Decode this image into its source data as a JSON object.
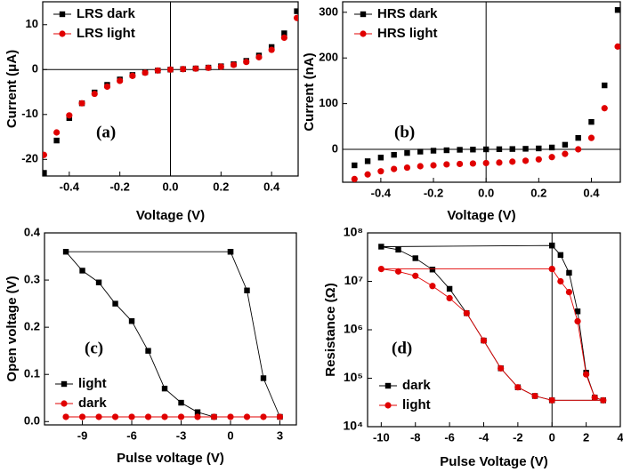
{
  "chart_data": [
    {
      "type": "scatter",
      "annotation": "(a)",
      "x_label": "Voltage (V)",
      "y_label": "Current (μA)",
      "x": [
        -0.5,
        -0.45,
        -0.4,
        -0.35,
        -0.3,
        -0.25,
        -0.2,
        -0.15,
        -0.1,
        -0.05,
        0,
        0.05,
        0.1,
        0.15,
        0.2,
        0.25,
        0.3,
        0.35,
        0.4,
        0.45,
        0.5
      ],
      "series": [
        {
          "name": "LRS dark",
          "color": "#000000",
          "marker": "square",
          "values": [
            -23,
            -15.8,
            -10.8,
            -7.5,
            -5.1,
            -3.4,
            -2.2,
            -1.2,
            -0.6,
            -0.2,
            0,
            0.11,
            0.25,
            0.44,
            0.74,
            1.2,
            1.94,
            3.13,
            5.02,
            8.08,
            13
          ]
        },
        {
          "name": "LRS light",
          "color": "#e00000",
          "marker": "circle",
          "values": [
            -19,
            -14,
            -10.2,
            -7.5,
            -5.4,
            -3.8,
            -2.5,
            -1.4,
            -0.7,
            -0.2,
            0,
            0.1,
            0.22,
            0.39,
            0.65,
            1.06,
            1.7,
            2.75,
            4.4,
            7.1,
            11.5
          ]
        }
      ],
      "xlim": [
        -0.505,
        0.505
      ],
      "xticks": [
        -0.4,
        -0.2,
        {
          "value": 0,
          "label": "0.0"
        },
        0.2,
        0.4
      ],
      "ylim": [
        -23.7,
        15.1
      ],
      "yticks": [
        -20,
        -10,
        0,
        10
      ],
      "zero_lines": true,
      "legend": "upper left"
    },
    {
      "type": "scatter",
      "annotation": "(b)",
      "x_label": "Voltage (V)",
      "y_label": "Current (nA)",
      "x": [
        -0.5,
        -0.45,
        -0.4,
        -0.35,
        -0.3,
        -0.25,
        -0.2,
        -0.15,
        -0.1,
        -0.05,
        0,
        0.05,
        0.1,
        0.15,
        0.2,
        0.25,
        0.3,
        0.35,
        0.4,
        0.45,
        0.5
      ],
      "series": [
        {
          "name": "HRS dark",
          "color": "#000000",
          "marker": "square",
          "values": [
            -35,
            -26,
            -18,
            -12,
            -8,
            -5,
            -3,
            -2,
            -1,
            -0.5,
            0,
            0.3,
            0.7,
            1.2,
            2,
            4,
            10,
            25,
            60,
            140,
            305
          ]
        },
        {
          "name": "HRS light",
          "color": "#e00000",
          "marker": "circle",
          "values": [
            -65,
            -55,
            -48,
            -43,
            -40,
            -37,
            -35,
            -33,
            -32,
            -31,
            -30,
            -29,
            -27,
            -25,
            -22,
            -17,
            -10,
            0,
            25,
            90,
            225
          ]
        }
      ],
      "xlim": [
        -0.545,
        0.51
      ],
      "xticks": [
        -0.4,
        -0.2,
        {
          "value": 0,
          "label": "0.0"
        },
        0.2,
        0.4
      ],
      "ylim": [
        -72,
        323
      ],
      "yticks": [
        0,
        100,
        200,
        300
      ],
      "zero_lines": true,
      "legend": "upper left"
    },
    {
      "type": "line",
      "annotation": "(c)",
      "x_label": "Pulse voltage (V)",
      "y_label": "Open voltage (V)",
      "series": [
        {
          "name": "light",
          "color": "#000000",
          "marker": "square",
          "x": [
            0,
            1,
            2,
            3,
            -1,
            -2,
            -3,
            -4,
            -5,
            -6,
            -7,
            -8,
            -9,
            -10,
            0
          ],
          "values": [
            0.36,
            0.278,
            0.092,
            0.01,
            0.01,
            0.02,
            0.04,
            0.07,
            0.15,
            0.213,
            0.25,
            0.295,
            0.32,
            0.36,
            0.36
          ]
        },
        {
          "name": "dark",
          "color": "#e00000",
          "marker": "circle",
          "x": [
            -10,
            -9,
            -8,
            -7,
            -6,
            -5,
            -4,
            -3,
            -2,
            -1,
            0,
            1,
            2,
            3
          ],
          "values": [
            0.01,
            0.01,
            0.01,
            0.01,
            0.01,
            0.01,
            0.01,
            0.01,
            0.01,
            0.01,
            0.01,
            0.01,
            0.01,
            0.01
          ]
        }
      ],
      "xlim": [
        -11.3,
        4
      ],
      "xticks": [
        -9,
        -6,
        -3,
        0,
        3
      ],
      "ylim": [
        -0.007,
        0.4
      ],
      "yticks": [
        {
          "value": 0,
          "label": "0.0"
        },
        0.1,
        0.2,
        0.3,
        0.4
      ],
      "zero_lines": false,
      "legend": "lower left"
    },
    {
      "type": "line",
      "annotation": "(d)",
      "x_label": "Pulse Voltage (V)",
      "y_label": "Resistance (Ω)",
      "series": [
        {
          "name": "dark",
          "color": "#000000",
          "marker": "square",
          "x": [
            0,
            0.5,
            1,
            1.5,
            2,
            2.5,
            3,
            0,
            -1,
            -2,
            -3,
            -4,
            -5,
            -6,
            -7,
            -8,
            -9,
            -10,
            0
          ],
          "values": [
            55000000,
            35000000,
            15000000,
            2400000,
            130000,
            40000,
            35000,
            35000,
            43000,
            65000,
            160000,
            600000,
            2200000,
            7000000,
            17500000,
            30000000,
            45000000,
            52000000,
            55000000
          ]
        },
        {
          "name": "light",
          "color": "#e00000",
          "marker": "circle",
          "x": [
            0,
            0.5,
            1,
            1.5,
            2,
            2.5,
            3,
            0,
            -1,
            -2,
            -3,
            -4,
            -5,
            -6,
            -7,
            -8,
            -9,
            -10,
            0
          ],
          "values": [
            18000000,
            10000000,
            6000000,
            1500000,
            120000,
            40000,
            35000,
            35000,
            43000,
            65000,
            160000,
            600000,
            2200000,
            4500000,
            8000000,
            13000000,
            16000000,
            18000000,
            18000000
          ]
        }
      ],
      "xlim": [
        -10.8,
        4
      ],
      "xticks": [
        -10,
        -8,
        -6,
        -4,
        -2,
        0,
        2,
        4
      ],
      "ylim": [
        10000,
        100000000
      ],
      "y_log": true,
      "yticks": [
        {
          "value": 10000,
          "label": "10⁴"
        },
        {
          "value": 100000,
          "label": "10⁵"
        },
        {
          "value": 1000000,
          "label": "10⁶"
        },
        {
          "value": 10000000,
          "label": "10⁷"
        },
        {
          "value": 100000000,
          "label": "10⁸"
        }
      ],
      "vertical_line_at_zero": true,
      "legend": "lower left"
    }
  ]
}
